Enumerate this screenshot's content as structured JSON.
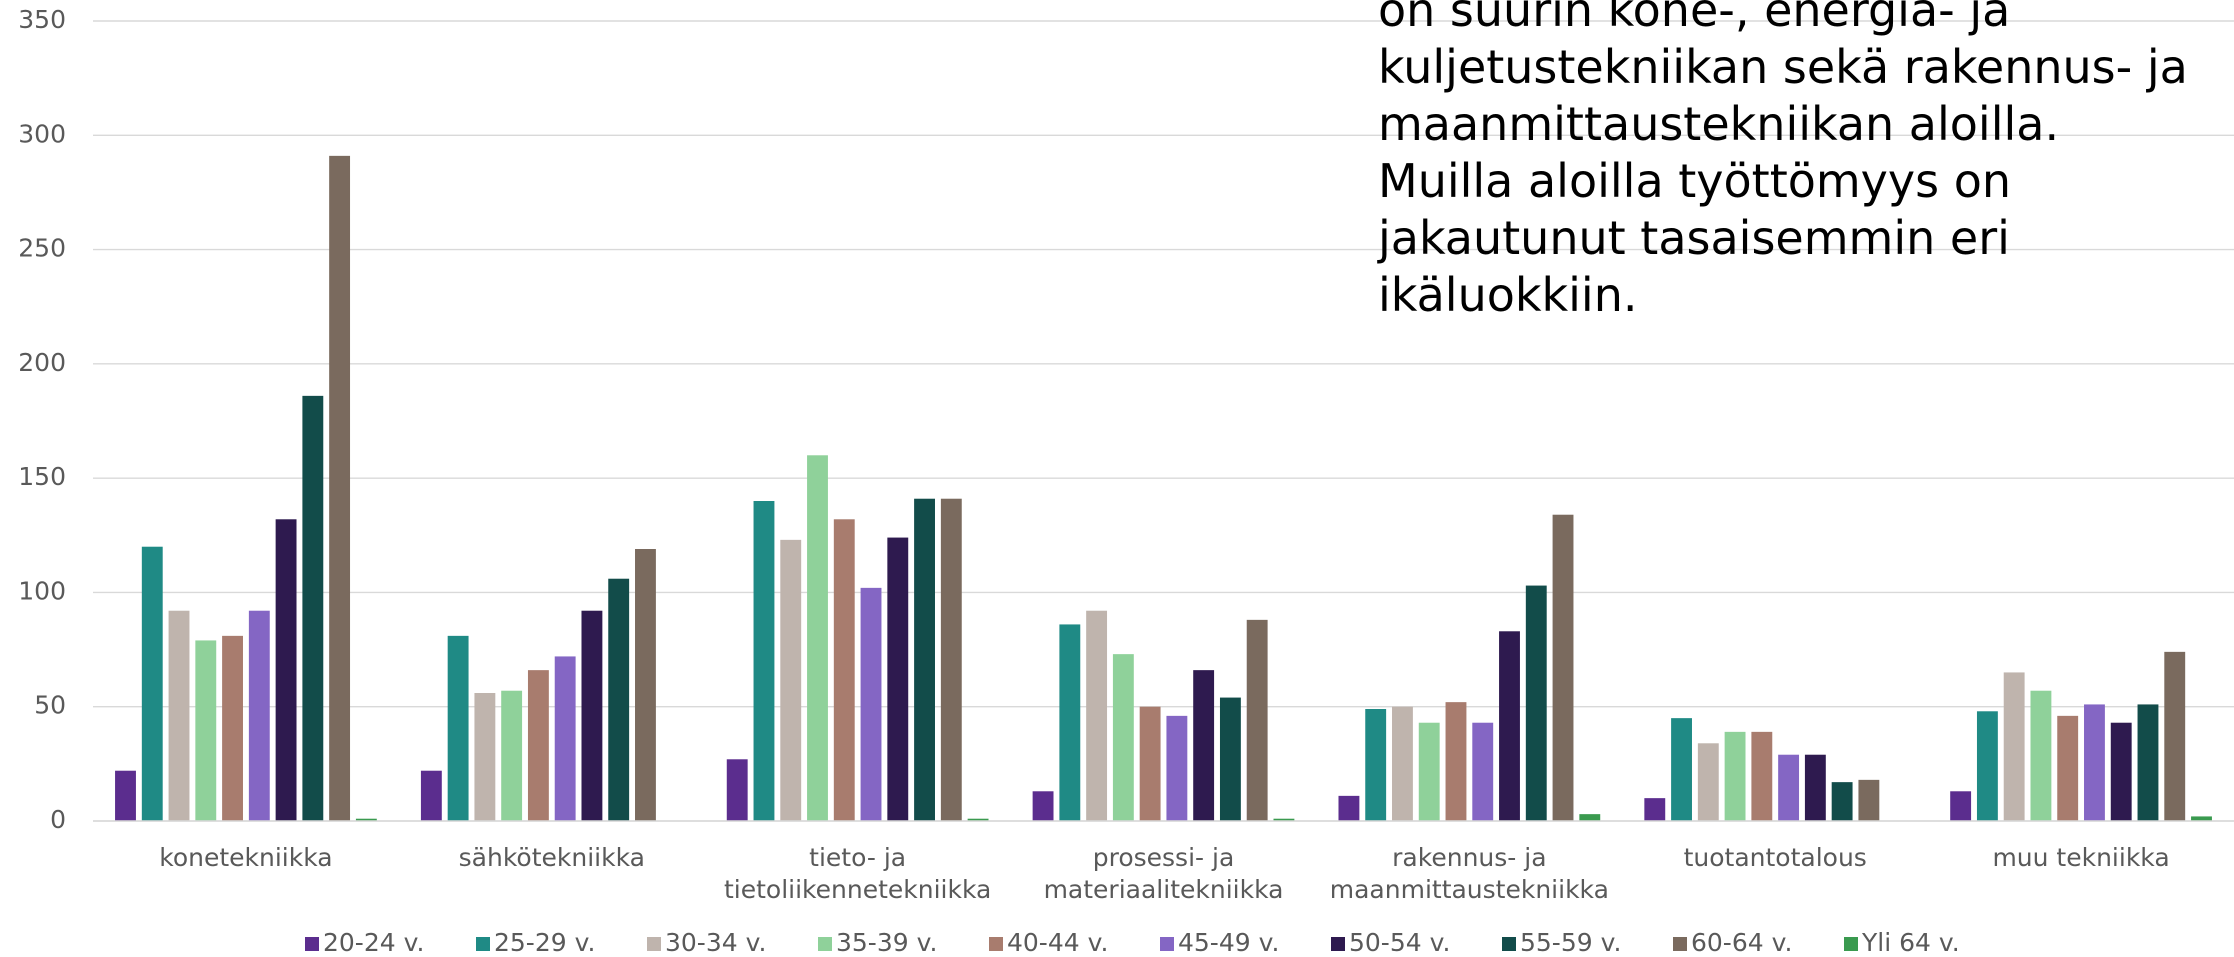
{
  "chart_data": {
    "type": "bar",
    "annotation": "on suurin kone-, energia- ja\nkuljetustekniikan sekä rakennus- ja\nmaanmittaustekniikan aloilla.\nMuilla aloilla työttömyys on\njakautunut tasaisemmin eri\nikäluokkiin.",
    "categories": [
      "konetekniikka",
      "sähkötekniikka",
      "tieto- ja\ntietoliikennetekniikka",
      "prosessi- ja\nmateriaalitekniikka",
      "rakennus- ja\nmaanmittaustekniikka",
      "tuotantotalous",
      "muu tekniikka"
    ],
    "series": [
      {
        "name": "20-24 v.",
        "color": "#5b2d8e",
        "values": [
          22,
          22,
          27,
          13,
          11,
          10,
          13
        ]
      },
      {
        "name": "25-29 v.",
        "color": "#1f8a85",
        "values": [
          120,
          81,
          140,
          86,
          49,
          45,
          48
        ]
      },
      {
        "name": "30-34 v.",
        "color": "#bfb4ad",
        "values": [
          92,
          56,
          123,
          92,
          50,
          34,
          65
        ]
      },
      {
        "name": "35-39 v.",
        "color": "#8fd19a",
        "values": [
          79,
          57,
          160,
          73,
          43,
          39,
          57
        ]
      },
      {
        "name": "40-44 v.",
        "color": "#a87c6e",
        "values": [
          81,
          66,
          132,
          50,
          52,
          39,
          46
        ]
      },
      {
        "name": "45-49 v.",
        "color": "#8466c4",
        "values": [
          92,
          72,
          102,
          46,
          43,
          29,
          51
        ]
      },
      {
        "name": "50-54 v.",
        "color": "#2e1a4f",
        "values": [
          132,
          92,
          124,
          66,
          83,
          29,
          43
        ]
      },
      {
        "name": "55-59 v.",
        "color": "#124c4a",
        "values": [
          186,
          106,
          141,
          54,
          103,
          17,
          51
        ]
      },
      {
        "name": "60-64 v.",
        "color": "#7a6a5e",
        "values": [
          291,
          119,
          141,
          88,
          134,
          18,
          74
        ]
      },
      {
        "name": "Yli 64 v.",
        "color": "#3a9a4f",
        "values": [
          1,
          0,
          1,
          1,
          3,
          0,
          2
        ]
      }
    ],
    "ylim": [
      0,
      350
    ],
    "yticks": [
      0,
      50,
      100,
      150,
      200,
      250,
      300,
      350
    ],
    "grid": true,
    "legend": "bottom"
  }
}
